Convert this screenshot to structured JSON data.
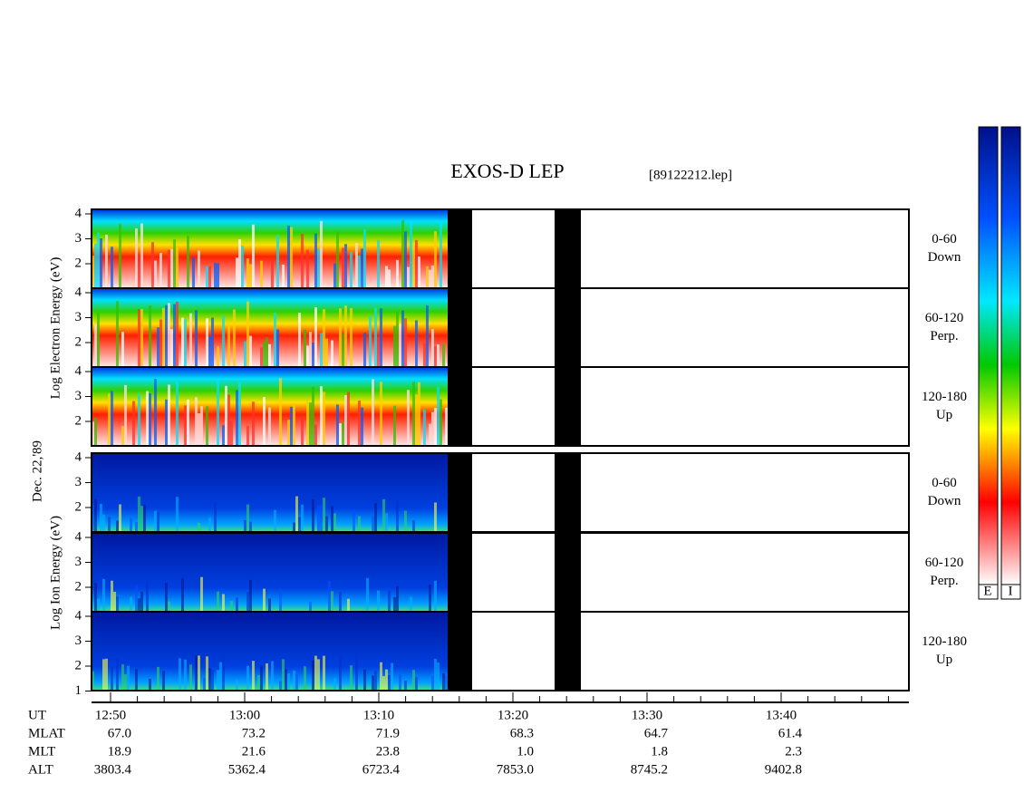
{
  "title": "EXOS-D LEP",
  "file": "[89122212.lep]",
  "date": "Dec. 22,'89",
  "electron_axis_label": "Log Electron Energy (eV)",
  "ion_axis_label": "Log Ion Energy (eV)",
  "panels": [
    {
      "label": "0-60",
      "sub": "Down",
      "ticks": [
        "4",
        "3",
        "2"
      ]
    },
    {
      "label": "60-120",
      "sub": "Perp.",
      "ticks": [
        "4",
        "3",
        "2"
      ]
    },
    {
      "label": "120-180",
      "sub": "Up",
      "ticks": [
        "4",
        "3",
        "2"
      ]
    },
    {
      "label": "0-60",
      "sub": "Down",
      "ticks": [
        "4",
        "3",
        "2"
      ]
    },
    {
      "label": "60-120",
      "sub": "Perp.",
      "ticks": [
        "4",
        "3",
        "2"
      ]
    },
    {
      "label": "120-180",
      "sub": "Up",
      "ticks": [
        "4",
        "3",
        "2",
        "1"
      ]
    }
  ],
  "colorbar_labels": [
    "E",
    "I"
  ],
  "ephemeris": {
    "rows": [
      [
        "UT",
        "12:50",
        "13:00",
        "13:10",
        "13:20",
        "13:30",
        "13:40"
      ],
      [
        "MLAT",
        "67.0",
        "73.2",
        "71.9",
        "68.3",
        "64.7",
        "61.4"
      ],
      [
        "MLT",
        "18.9",
        "21.6",
        "23.8",
        "1.0",
        "1.8",
        "2.3"
      ],
      [
        "ALT",
        "3803.4",
        "5362.4",
        "6723.4",
        "7853.0",
        "8745.2",
        "9402.8"
      ]
    ]
  }
}
